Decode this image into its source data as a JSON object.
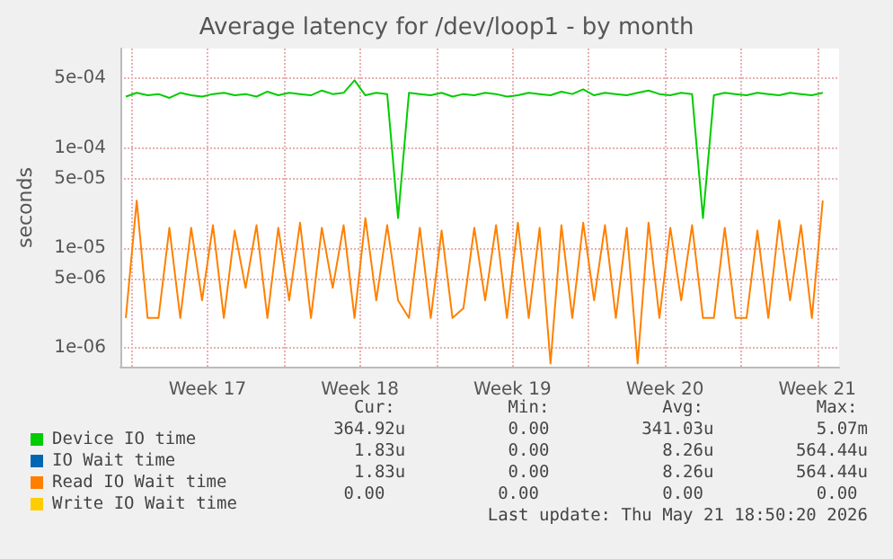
{
  "chart_data": {
    "type": "line",
    "title": "Average latency for /dev/loop1 - by month",
    "ylabel": "seconds",
    "x": [
      "2026-04-19T18:00",
      "2026-04-20T06:00",
      "2026-04-20T18:00",
      "2026-04-21T06:00",
      "2026-04-21T18:00",
      "2026-04-22T06:00",
      "2026-04-22T18:00",
      "2026-04-23T06:00",
      "2026-04-23T18:00",
      "2026-04-24T06:00",
      "2026-04-24T18:00",
      "2026-04-25T06:00",
      "2026-04-25T18:00",
      "2026-04-26T06:00",
      "2026-04-26T18:00",
      "2026-04-27T06:00",
      "2026-04-27T18:00",
      "2026-04-28T06:00",
      "2026-04-28T18:00",
      "2026-04-29T06:00",
      "2026-04-29T18:00",
      "2026-04-30T06:00",
      "2026-04-30T18:00",
      "2026-05-01T06:00",
      "2026-05-01T18:00",
      "2026-05-02T06:00",
      "2026-05-02T18:00",
      "2026-05-03T06:00",
      "2026-05-03T18:00",
      "2026-05-04T06:00",
      "2026-05-04T18:00",
      "2026-05-05T06:00",
      "2026-05-05T18:00",
      "2026-05-06T06:00",
      "2026-05-06T18:00",
      "2026-05-07T06:00",
      "2026-05-07T18:00",
      "2026-05-08T06:00",
      "2026-05-08T18:00",
      "2026-05-09T06:00",
      "2026-05-09T18:00",
      "2026-05-10T06:00",
      "2026-05-10T18:00",
      "2026-05-11T06:00",
      "2026-05-11T18:00",
      "2026-05-12T06:00",
      "2026-05-12T18:00",
      "2026-05-13T06:00",
      "2026-05-13T18:00",
      "2026-05-14T06:00",
      "2026-05-14T18:00",
      "2026-05-15T06:00",
      "2026-05-15T18:00",
      "2026-05-16T06:00",
      "2026-05-16T18:00",
      "2026-05-17T06:00",
      "2026-05-17T18:00",
      "2026-05-18T06:00",
      "2026-05-18T18:00",
      "2026-05-19T06:00",
      "2026-05-19T18:00",
      "2026-05-20T06:00",
      "2026-05-20T18:00",
      "2026-05-21T06:00",
      "2026-05-21T18:00"
    ],
    "series": [
      {
        "name": "Device IO time",
        "color": "#00cc00",
        "values": [
          0.00033,
          0.00036,
          0.00034,
          0.00035,
          0.00032,
          0.00036,
          0.00034,
          0.00033,
          0.00035,
          0.00036,
          0.00034,
          0.00035,
          0.00033,
          0.00037,
          0.00034,
          0.00036,
          0.00035,
          0.00034,
          0.00038,
          0.00035,
          0.00036,
          0.00048,
          0.00034,
          0.00036,
          0.00035,
          2e-05,
          0.00036,
          0.00035,
          0.00034,
          0.00036,
          0.00033,
          0.00035,
          0.00034,
          0.00036,
          0.00035,
          0.00033,
          0.00034,
          0.00036,
          0.00035,
          0.00034,
          0.00037,
          0.00035,
          0.00039,
          0.00034,
          0.00036,
          0.00035,
          0.00034,
          0.00036,
          0.00038,
          0.00035,
          0.00034,
          0.00036,
          0.00035,
          2e-05,
          0.00034,
          0.00036,
          0.00035,
          0.00034,
          0.00036,
          0.00035,
          0.00034,
          0.00036,
          0.00035,
          0.00034,
          0.00036
        ]
      },
      {
        "name": "IO Wait time",
        "color": "#0066b3",
        "values": [
          null,
          null,
          null,
          null,
          null,
          null,
          null,
          null,
          null,
          null,
          null,
          null,
          null,
          null,
          null,
          null,
          null,
          null,
          null,
          null,
          null,
          null,
          null,
          null,
          null,
          null,
          null,
          null,
          null,
          null,
          null,
          null,
          null,
          null,
          null,
          null,
          null,
          null,
          null,
          null,
          null,
          null,
          null,
          null,
          null,
          null,
          null,
          null,
          null,
          null,
          null,
          null,
          null,
          null,
          null,
          null,
          null,
          null,
          null,
          null,
          null,
          null,
          null,
          null,
          null
        ]
      },
      {
        "name": "Read IO Wait time",
        "color": "#ff8000",
        "values": [
          2e-06,
          3e-05,
          2e-06,
          2e-06,
          1.6e-05,
          2e-06,
          1.6e-05,
          3e-06,
          1.7e-05,
          2e-06,
          1.5e-05,
          4e-06,
          1.7e-05,
          2e-06,
          1.6e-05,
          3e-06,
          1.8e-05,
          2e-06,
          1.6e-05,
          4e-06,
          1.7e-05,
          2e-06,
          2e-05,
          3e-06,
          1.7e-05,
          3e-06,
          2e-06,
          1.6e-05,
          2e-06,
          1.5e-05,
          2e-06,
          2.5e-06,
          1.6e-05,
          3e-06,
          1.7e-05,
          2e-06,
          1.8e-05,
          2e-06,
          1.6e-05,
          7e-07,
          1.7e-05,
          2e-06,
          1.8e-05,
          3e-06,
          1.7e-05,
          2e-06,
          1.6e-05,
          7e-07,
          1.8e-05,
          2e-06,
          1.6e-05,
          3e-06,
          1.7e-05,
          2e-06,
          2e-06,
          1.6e-05,
          2e-06,
          2e-06,
          1.5e-05,
          2e-06,
          1.9e-05,
          3e-06,
          1.7e-05,
          2e-06,
          3e-05
        ]
      },
      {
        "name": "Write IO Wait time",
        "color": "#ffcc00",
        "values": [
          null,
          null,
          null,
          null,
          null,
          null,
          null,
          null,
          null,
          null,
          null,
          null,
          null,
          null,
          null,
          null,
          null,
          null,
          null,
          null,
          null,
          null,
          null,
          null,
          null,
          null,
          null,
          null,
          null,
          null,
          null,
          null,
          null,
          null,
          null,
          null,
          null,
          null,
          null,
          null,
          null,
          null,
          null,
          null,
          null,
          null,
          null,
          null,
          null,
          null,
          null,
          null,
          null,
          null,
          null,
          null,
          null,
          null,
          null,
          null,
          null,
          null,
          null,
          null,
          null
        ]
      }
    ],
    "xlim": [
      "2026-04-19T12:00",
      "2026-05-22T12:00"
    ],
    "xticks": [
      {
        "value": "2026-04-20T00:00",
        "label": null
      },
      {
        "value": "2026-04-23T12:00",
        "label": "Week 17"
      },
      {
        "value": "2026-04-27T00:00",
        "label": null
      },
      {
        "value": "2026-04-30T12:00",
        "label": "Week 18"
      },
      {
        "value": "2026-05-04T00:00",
        "label": null
      },
      {
        "value": "2026-05-07T12:00",
        "label": "Week 19"
      },
      {
        "value": "2026-05-11T00:00",
        "label": null
      },
      {
        "value": "2026-05-14T12:00",
        "label": "Week 20"
      },
      {
        "value": "2026-05-18T00:00",
        "label": null
      },
      {
        "value": "2026-05-21T12:00",
        "label": "Week 21"
      }
    ],
    "ylim": [
      6.5e-07,
      0.001
    ],
    "yticks": [
      {
        "value": 1e-06,
        "label": "1e-06"
      },
      {
        "value": 5e-06,
        "label": "5e-06"
      },
      {
        "value": 1e-05,
        "label": "1e-05"
      },
      {
        "value": 5e-05,
        "label": "5e-05"
      },
      {
        "value": 0.0001,
        "label": "1e-04"
      },
      {
        "value": 0.0005,
        "label": "5e-04"
      }
    ],
    "log": true,
    "grid": true,
    "legend": "bottom left",
    "marker": "none",
    "line_style": "solid",
    "annotations": [
      "Cur:           Min:           Avg:           Max: ",
      "364.92u          0.00         341.03u          5.07m",
      "1.83u          0.00           8.26u        564.44u",
      "1.83u          0.00           8.26u        564.44u",
      "0.00           0.00            0.00           0.00 ",
      "Last update: Thu May 21 18:50:20 2026"
    ]
  }
}
